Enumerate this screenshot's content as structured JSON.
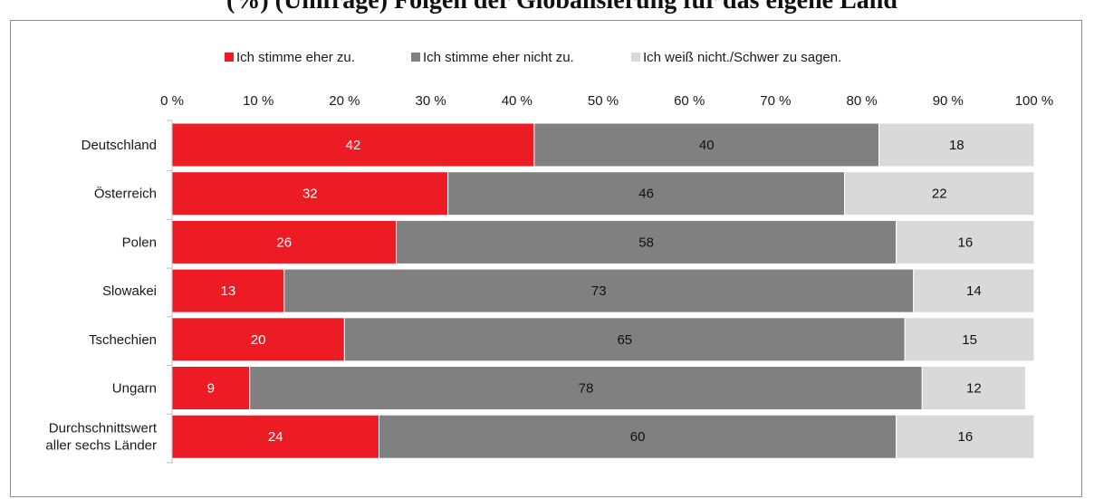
{
  "title_fragment": "(%) (Umfrage) Folgen der Globalisierung für das eigene Land",
  "chart_data": {
    "type": "bar",
    "orientation": "horizontal",
    "stacked": true,
    "categories": [
      [
        "Deutschland"
      ],
      [
        "Österreich"
      ],
      [
        "Polen"
      ],
      [
        "Slowakei"
      ],
      [
        "Tschechien"
      ],
      [
        "Ungarn"
      ],
      [
        "Durchschnittswert",
        "aller sechs Länder"
      ]
    ],
    "series": [
      {
        "name": "Ich stimme eher zu.",
        "color": "#ed1c24",
        "label_color": "#ffffff",
        "values": [
          42,
          32,
          26,
          13,
          20,
          9,
          24
        ]
      },
      {
        "name": "Ich stimme eher nicht zu.",
        "color": "#808080",
        "label_color": "#111111",
        "values": [
          40,
          46,
          58,
          73,
          65,
          78,
          60
        ]
      },
      {
        "name": "Ich weiß nicht./Schwer zu sagen.",
        "color": "#d9d9d9",
        "label_color": "#111111",
        "values": [
          18,
          22,
          16,
          14,
          15,
          12,
          16
        ]
      }
    ],
    "xlim": [
      0,
      100
    ],
    "x_ticks": [
      "0 %",
      "10 %",
      "20 %",
      "30 %",
      "40 %",
      "50 %",
      "60 %",
      "70 %",
      "80 %",
      "90 %",
      "100 %"
    ],
    "legend_position": "top",
    "grid": false
  }
}
